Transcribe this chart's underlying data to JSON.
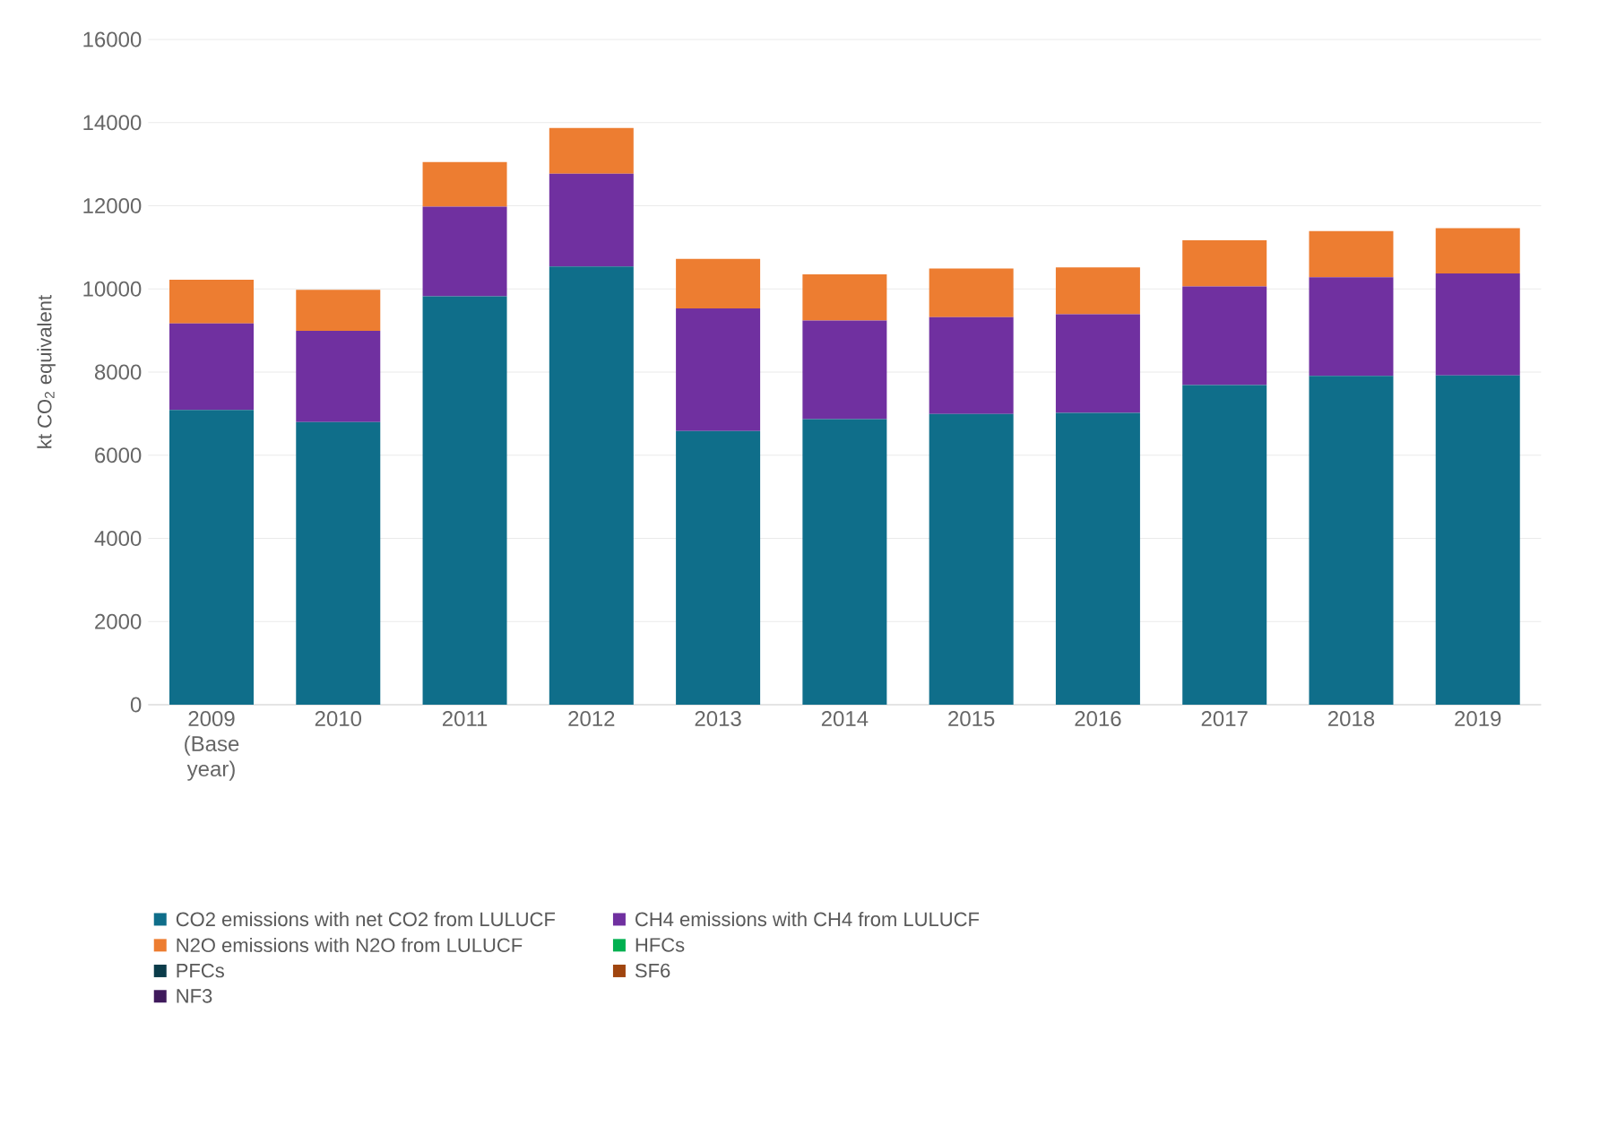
{
  "chart_data": {
    "type": "bar",
    "stacked": true,
    "ylabel": "kt CO$_{2}$ equivalent",
    "categories": [
      "2009 (Base year)",
      "2010",
      "2011",
      "2012",
      "2013",
      "2014",
      "2015",
      "2016",
      "2017",
      "2018",
      "2019"
    ],
    "series": [
      {
        "name": "CO2 emissions with net CO2 from LULUCF",
        "color": "#0f6e8a",
        "values": [
          7090,
          6800,
          9820,
          10540,
          6580,
          6870,
          6990,
          7020,
          7690,
          7910,
          7920
        ]
      },
      {
        "name": "CH4 emissions with CH4 from LULUCF",
        "color": "#7030a0",
        "values": [
          2080,
          2190,
          2160,
          2230,
          2950,
          2370,
          2330,
          2370,
          2370,
          2370,
          2450
        ]
      },
      {
        "name": "N2O emissions with N2O from LULUCF",
        "color": "#ed7d31",
        "values": [
          1050,
          990,
          1070,
          1100,
          1190,
          1110,
          1170,
          1130,
          1110,
          1110,
          1090
        ]
      },
      {
        "name": "HFCs",
        "color": "#00b050",
        "values": [
          0,
          0,
          0,
          0,
          0,
          0,
          0,
          0,
          0,
          0,
          0
        ]
      },
      {
        "name": "PFCs",
        "color": "#0b3c4a",
        "values": [
          0,
          0,
          0,
          0,
          0,
          0,
          0,
          0,
          0,
          0,
          0
        ]
      },
      {
        "name": "SF6",
        "color": "#a0450f",
        "values": [
          0,
          0,
          0,
          0,
          0,
          0,
          0,
          0,
          0,
          0,
          0
        ]
      },
      {
        "name": "NF3",
        "color": "#3f1a5c",
        "values": [
          0,
          0,
          0,
          0,
          0,
          0,
          0,
          0,
          0,
          0,
          0
        ]
      }
    ],
    "ylim": [
      0,
      16000
    ],
    "yticks": [
      0,
      2000,
      4000,
      6000,
      8000,
      10000,
      12000,
      14000,
      16000
    ],
    "grid": "y",
    "legend": "bottom"
  }
}
